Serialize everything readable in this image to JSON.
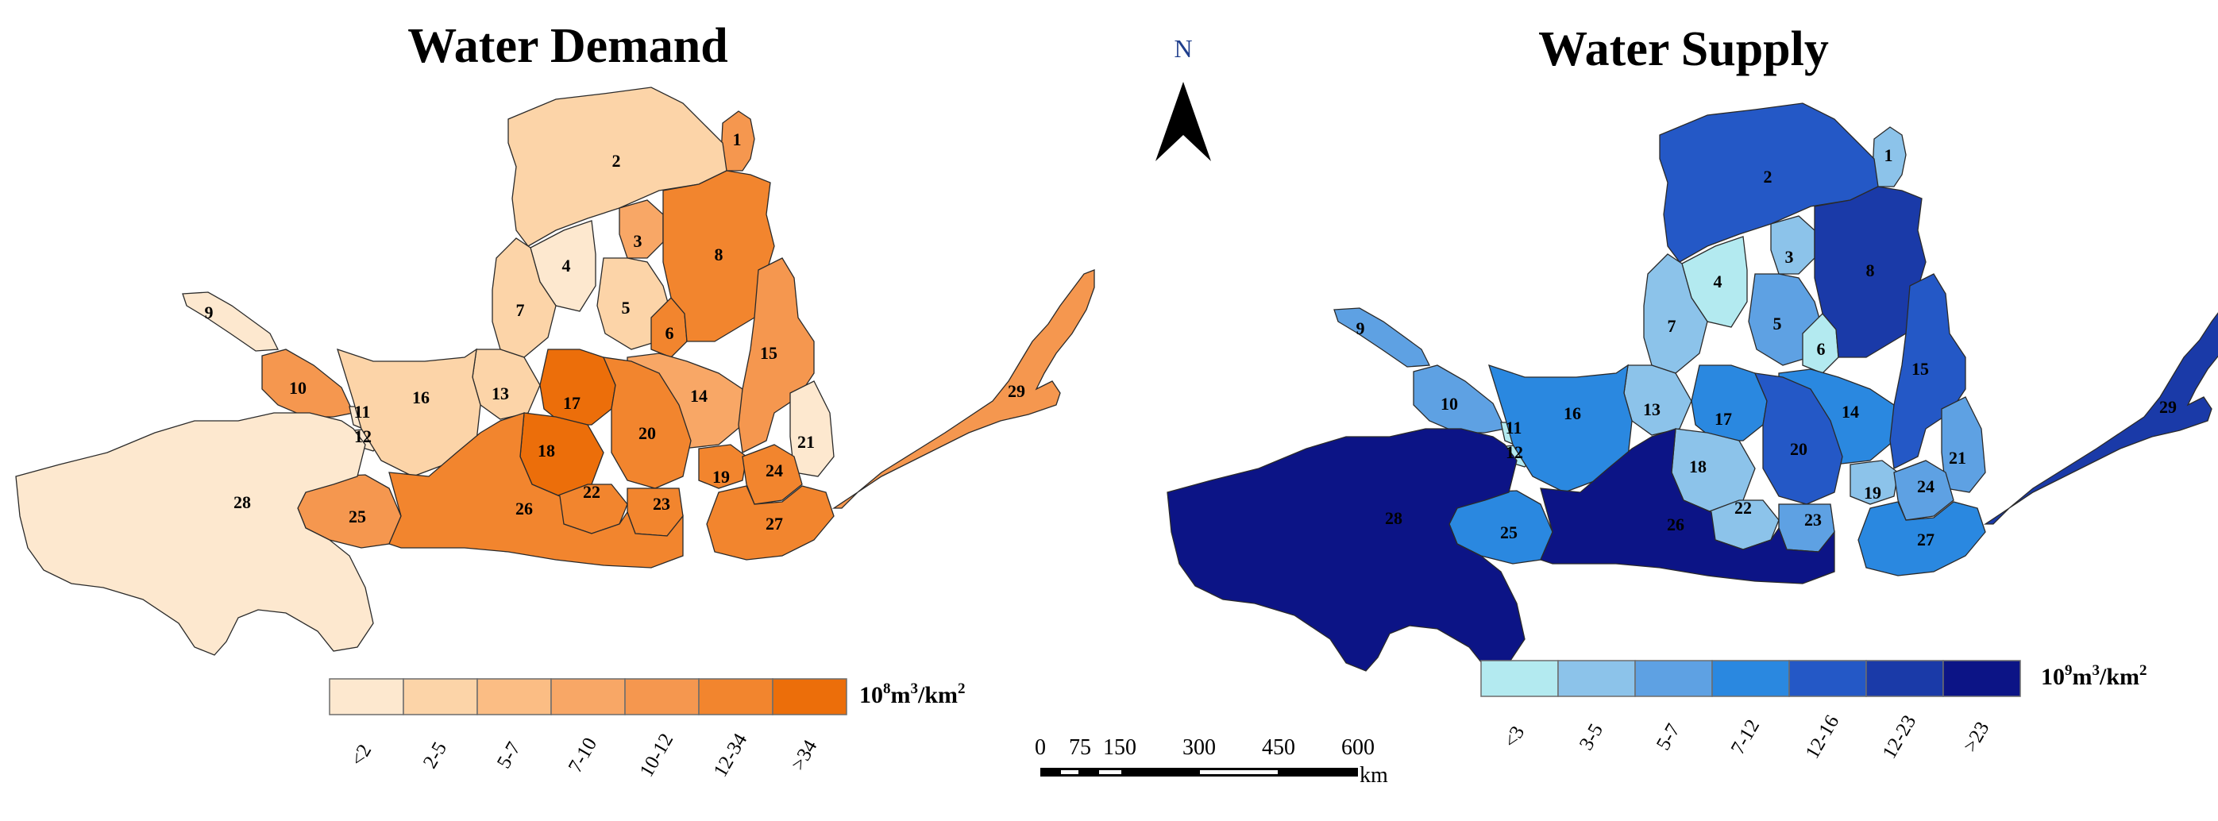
{
  "left_map": {
    "title": "Water Demand",
    "unit_prefix": "10",
    "unit_exp": "8",
    "unit_rest": "m",
    "unit_exp2": "3",
    "unit_tail": "/km",
    "unit_exp3": "2",
    "legend": [
      {
        "label": "<2",
        "color": "#fde8cf"
      },
      {
        "label": "2-5",
        "color": "#fcd4a8"
      },
      {
        "label": "5-7",
        "color": "#fbbd84"
      },
      {
        "label": "7-10",
        "color": "#f8a766"
      },
      {
        "label": "10-12",
        "color": "#f5974f"
      },
      {
        "label": "12-34",
        "color": "#f2852e"
      },
      {
        "label": ">34",
        "color": "#ec6e0a"
      }
    ],
    "regions": [
      {
        "id": "1",
        "class": 4
      },
      {
        "id": "2",
        "class": 1
      },
      {
        "id": "3",
        "class": 3
      },
      {
        "id": "4",
        "class": 0
      },
      {
        "id": "5",
        "class": 1
      },
      {
        "id": "6",
        "class": 5
      },
      {
        "id": "7",
        "class": 1
      },
      {
        "id": "8",
        "class": 5
      },
      {
        "id": "9",
        "class": 0
      },
      {
        "id": "10",
        "class": 4
      },
      {
        "id": "11",
        "class": 0
      },
      {
        "id": "12",
        "class": 0
      },
      {
        "id": "13",
        "class": 1
      },
      {
        "id": "14",
        "class": 3
      },
      {
        "id": "15",
        "class": 4
      },
      {
        "id": "16",
        "class": 1
      },
      {
        "id": "17",
        "class": 6
      },
      {
        "id": "18",
        "class": 6
      },
      {
        "id": "19",
        "class": 5
      },
      {
        "id": "20",
        "class": 5
      },
      {
        "id": "21",
        "class": 0
      },
      {
        "id": "22",
        "class": 5
      },
      {
        "id": "23",
        "class": 5
      },
      {
        "id": "24",
        "class": 5
      },
      {
        "id": "25",
        "class": 4
      },
      {
        "id": "26",
        "class": 5
      },
      {
        "id": "27",
        "class": 5
      },
      {
        "id": "28",
        "class": 0
      },
      {
        "id": "29",
        "class": 4
      }
    ]
  },
  "right_map": {
    "title": "Water Supply",
    "unit_prefix": "10",
    "unit_exp": "9",
    "unit_rest": "m",
    "unit_exp2": "3",
    "unit_tail": "/km",
    "unit_exp3": "2",
    "legend": [
      {
        "label": "<3",
        "color": "#b3eaf0"
      },
      {
        "label": "3-5",
        "color": "#8cc3ea"
      },
      {
        "label": "5-7",
        "color": "#5ea1e3"
      },
      {
        "label": "7-12",
        "color": "#2a88e0"
      },
      {
        "label": "12-16",
        "color": "#2458c6"
      },
      {
        "label": "12-23",
        "color": "#1a3aa8"
      },
      {
        "label": ">23",
        "color": "#0c1486"
      }
    ],
    "regions": [
      {
        "id": "1",
        "class": 1
      },
      {
        "id": "2",
        "class": 4
      },
      {
        "id": "3",
        "class": 1
      },
      {
        "id": "4",
        "class": 0
      },
      {
        "id": "5",
        "class": 2
      },
      {
        "id": "6",
        "class": 0
      },
      {
        "id": "7",
        "class": 1
      },
      {
        "id": "8",
        "class": 5
      },
      {
        "id": "9",
        "class": 2
      },
      {
        "id": "10",
        "class": 2
      },
      {
        "id": "11",
        "class": 0
      },
      {
        "id": "12",
        "class": 0
      },
      {
        "id": "13",
        "class": 1
      },
      {
        "id": "14",
        "class": 3
      },
      {
        "id": "15",
        "class": 4
      },
      {
        "id": "16",
        "class": 3
      },
      {
        "id": "17",
        "class": 3
      },
      {
        "id": "18",
        "class": 1
      },
      {
        "id": "19",
        "class": 1
      },
      {
        "id": "20",
        "class": 4
      },
      {
        "id": "21",
        "class": 2
      },
      {
        "id": "22",
        "class": 1
      },
      {
        "id": "23",
        "class": 2
      },
      {
        "id": "24",
        "class": 2
      },
      {
        "id": "25",
        "class": 3
      },
      {
        "id": "26",
        "class": 6
      },
      {
        "id": "27",
        "class": 3
      },
      {
        "id": "28",
        "class": 6
      },
      {
        "id": "29",
        "class": 5
      }
    ]
  },
  "north_arrow": {
    "label": "N"
  },
  "scale_bar": {
    "ticks": [
      "0",
      "75",
      "150",
      "300",
      "450",
      "600"
    ],
    "unit": "km"
  }
}
